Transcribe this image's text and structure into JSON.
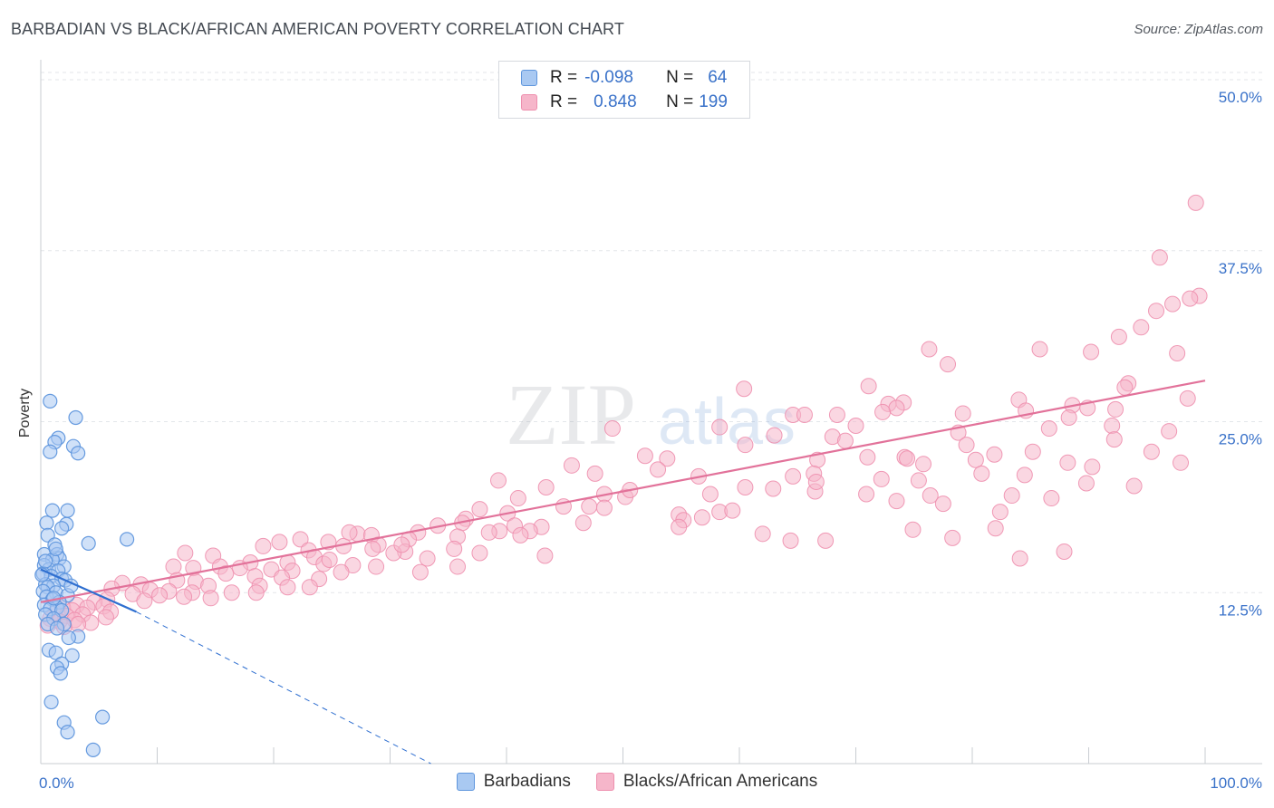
{
  "header": {
    "title": "BARBADIAN VS BLACK/AFRICAN AMERICAN POVERTY CORRELATION CHART",
    "source": "Source: ZipAtlas.com"
  },
  "legend": {
    "rows": [
      {
        "r_label": "R =",
        "r_value": "-0.098",
        "n_label": "N =",
        "n_value": "64"
      },
      {
        "r_label": "R =",
        "r_value": "0.848",
        "n_label": "N =",
        "n_value": "199"
      }
    ]
  },
  "bottom_legend": [
    "Barbadians",
    "Blacks/African Americans"
  ],
  "colors": {
    "blue_fill": "#a9c9f2",
    "blue_stroke": "#5f96dd",
    "blue_line": "#2f6fd0",
    "pink_fill": "#f6b6ca",
    "pink_stroke": "#ee8fae",
    "pink_line": "#e2729a",
    "axis_text": "#3a72c9",
    "grid": "#e3e6ea"
  },
  "watermark": {
    "zip": "ZIP",
    "atlas": "atlas"
  },
  "chart_data": {
    "type": "scatter",
    "title": "BARBADIAN VS BLACK/AFRICAN AMERICAN POVERTY CORRELATION CHART",
    "xlabel": "",
    "ylabel": "Poverty",
    "xlim": [
      0,
      100
    ],
    "ylim": [
      0,
      50
    ],
    "x_tick_labels": [
      "0.0%",
      "100.0%"
    ],
    "y_ticks": [
      12.5,
      25.0,
      37.5,
      50.0
    ],
    "y_tick_labels": [
      "12.5%",
      "25.0%",
      "37.5%",
      "50.0%"
    ],
    "grid": true,
    "series": [
      {
        "name": "Barbadians",
        "color": "blue",
        "R": -0.098,
        "N": 64,
        "trend_solid": [
          [
            0,
            14.2
          ],
          [
            8.2,
            11.1
          ]
        ],
        "trend_dashed": [
          [
            8.2,
            11.1
          ],
          [
            33.5,
            0
          ]
        ],
        "points": [
          [
            0.8,
            26.5
          ],
          [
            3.0,
            25.3
          ],
          [
            1.5,
            23.8
          ],
          [
            1.2,
            23.5
          ],
          [
            2.8,
            23.2
          ],
          [
            0.8,
            22.8
          ],
          [
            3.2,
            22.7
          ],
          [
            1.0,
            18.5
          ],
          [
            2.3,
            18.5
          ],
          [
            0.5,
            17.6
          ],
          [
            2.2,
            17.5
          ],
          [
            1.8,
            17.2
          ],
          [
            0.6,
            16.7
          ],
          [
            1.2,
            16.0
          ],
          [
            4.1,
            16.1
          ],
          [
            7.4,
            16.4
          ],
          [
            0.3,
            15.3
          ],
          [
            1.4,
            15.3
          ],
          [
            1.6,
            15.0
          ],
          [
            1.0,
            14.9
          ],
          [
            0.3,
            14.5
          ],
          [
            2.0,
            14.4
          ],
          [
            0.7,
            14.2
          ],
          [
            1.5,
            14.1
          ],
          [
            0.2,
            13.9
          ],
          [
            0.9,
            13.7
          ],
          [
            1.8,
            13.5
          ],
          [
            2.1,
            13.4
          ],
          [
            0.4,
            13.1
          ],
          [
            1.1,
            13.0
          ],
          [
            0.6,
            12.9
          ],
          [
            0.2,
            12.6
          ],
          [
            1.3,
            12.5
          ],
          [
            2.3,
            12.3
          ],
          [
            0.5,
            12.2
          ],
          [
            1.0,
            12.0
          ],
          [
            1.6,
            11.8
          ],
          [
            0.3,
            11.6
          ],
          [
            1.4,
            11.4
          ],
          [
            0.8,
            11.3
          ],
          [
            1.8,
            11.2
          ],
          [
            0.4,
            10.9
          ],
          [
            1.1,
            10.6
          ],
          [
            0.6,
            10.2
          ],
          [
            2.0,
            10.2
          ],
          [
            1.4,
            9.9
          ],
          [
            3.2,
            9.3
          ],
          [
            2.4,
            9.2
          ],
          [
            0.7,
            8.3
          ],
          [
            1.3,
            8.1
          ],
          [
            2.7,
            7.9
          ],
          [
            1.8,
            7.3
          ],
          [
            1.4,
            7.0
          ],
          [
            1.7,
            6.6
          ],
          [
            0.9,
            4.5
          ],
          [
            5.3,
            3.4
          ],
          [
            2.0,
            3.0
          ],
          [
            2.3,
            2.3
          ],
          [
            4.5,
            1.0
          ],
          [
            1.1,
            12.1
          ],
          [
            0.1,
            13.8
          ],
          [
            1.3,
            15.7
          ],
          [
            2.6,
            13.0
          ],
          [
            0.4,
            14.8
          ]
        ]
      },
      {
        "name": "Blacks/African Americans",
        "color": "pink",
        "R": 0.848,
        "N": 199,
        "trend": [
          [
            0,
            11.8
          ],
          [
            100,
            28.0
          ]
        ],
        "points": [
          [
            99.2,
            41.0
          ],
          [
            96.1,
            37.0
          ],
          [
            99.5,
            34.2
          ],
          [
            98.7,
            34.0
          ],
          [
            97.2,
            33.6
          ],
          [
            95.8,
            33.1
          ],
          [
            94.5,
            31.9
          ],
          [
            92.6,
            31.2
          ],
          [
            90.2,
            30.1
          ],
          [
            97.6,
            30.0
          ],
          [
            76.3,
            30.3
          ],
          [
            85.8,
            30.3
          ],
          [
            77.9,
            29.2
          ],
          [
            93.4,
            27.8
          ],
          [
            71.1,
            27.6
          ],
          [
            60.4,
            27.4
          ],
          [
            98.5,
            26.7
          ],
          [
            84.0,
            26.6
          ],
          [
            74.1,
            26.4
          ],
          [
            72.8,
            26.3
          ],
          [
            88.6,
            26.2
          ],
          [
            73.5,
            26.0
          ],
          [
            92.3,
            25.9
          ],
          [
            84.6,
            25.8
          ],
          [
            72.3,
            25.7
          ],
          [
            79.2,
            25.6
          ],
          [
            68.4,
            25.5
          ],
          [
            64.6,
            25.5
          ],
          [
            65.6,
            25.5
          ],
          [
            88.3,
            25.3
          ],
          [
            92.0,
            24.7
          ],
          [
            70.0,
            24.7
          ],
          [
            58.3,
            24.6
          ],
          [
            49.1,
            24.5
          ],
          [
            86.6,
            24.5
          ],
          [
            78.8,
            24.2
          ],
          [
            96.9,
            24.3
          ],
          [
            68.0,
            23.9
          ],
          [
            92.2,
            23.7
          ],
          [
            69.1,
            23.6
          ],
          [
            79.5,
            23.3
          ],
          [
            85.2,
            22.8
          ],
          [
            95.4,
            22.8
          ],
          [
            81.9,
            22.6
          ],
          [
            74.2,
            22.4
          ],
          [
            71.0,
            22.4
          ],
          [
            74.4,
            22.3
          ],
          [
            66.7,
            22.2
          ],
          [
            80.3,
            22.2
          ],
          [
            53.8,
            22.3
          ],
          [
            88.2,
            22.0
          ],
          [
            90.3,
            21.7
          ],
          [
            97.9,
            22.0
          ],
          [
            66.4,
            21.2
          ],
          [
            80.8,
            21.2
          ],
          [
            84.5,
            21.1
          ],
          [
            64.6,
            21.0
          ],
          [
            56.5,
            21.0
          ],
          [
            72.2,
            20.8
          ],
          [
            75.4,
            20.7
          ],
          [
            89.8,
            20.5
          ],
          [
            93.9,
            20.3
          ],
          [
            60.5,
            20.2
          ],
          [
            62.9,
            20.1
          ],
          [
            66.5,
            19.9
          ],
          [
            70.9,
            19.7
          ],
          [
            76.4,
            19.6
          ],
          [
            83.4,
            19.6
          ],
          [
            86.8,
            19.4
          ],
          [
            50.2,
            19.5
          ],
          [
            48.4,
            19.7
          ],
          [
            57.5,
            19.7
          ],
          [
            47.1,
            18.8
          ],
          [
            48.4,
            18.7
          ],
          [
            37.7,
            18.6
          ],
          [
            58.3,
            18.4
          ],
          [
            54.8,
            18.2
          ],
          [
            40.1,
            18.3
          ],
          [
            36.5,
            17.9
          ],
          [
            55.2,
            17.8
          ],
          [
            43.0,
            17.3
          ],
          [
            40.7,
            17.4
          ],
          [
            36.2,
            17.6
          ],
          [
            46.6,
            17.6
          ],
          [
            34.1,
            17.4
          ],
          [
            42.0,
            17.0
          ],
          [
            39.4,
            17.0
          ],
          [
            38.5,
            16.9
          ],
          [
            32.4,
            16.9
          ],
          [
            41.2,
            16.7
          ],
          [
            27.2,
            16.8
          ],
          [
            28.4,
            16.7
          ],
          [
            22.3,
            16.4
          ],
          [
            20.5,
            16.2
          ],
          [
            31.6,
            16.4
          ],
          [
            35.8,
            16.6
          ],
          [
            24.7,
            16.2
          ],
          [
            29.0,
            16.0
          ],
          [
            23.0,
            15.6
          ],
          [
            26.0,
            15.9
          ],
          [
            19.1,
            15.9
          ],
          [
            35.5,
            15.7
          ],
          [
            28.5,
            15.7
          ],
          [
            31.3,
            15.5
          ],
          [
            37.7,
            15.4
          ],
          [
            30.3,
            15.4
          ],
          [
            43.3,
            15.2
          ],
          [
            23.5,
            15.1
          ],
          [
            33.2,
            15.0
          ],
          [
            14.8,
            15.2
          ],
          [
            18.0,
            14.7
          ],
          [
            21.2,
            14.7
          ],
          [
            24.3,
            14.6
          ],
          [
            15.4,
            14.4
          ],
          [
            26.8,
            14.5
          ],
          [
            28.8,
            14.4
          ],
          [
            35.8,
            14.4
          ],
          [
            11.4,
            14.4
          ],
          [
            13.1,
            14.3
          ],
          [
            17.1,
            14.3
          ],
          [
            19.8,
            14.2
          ],
          [
            21.6,
            14.1
          ],
          [
            25.8,
            14.0
          ],
          [
            32.6,
            14.0
          ],
          [
            15.9,
            13.9
          ],
          [
            18.4,
            13.7
          ],
          [
            20.7,
            13.6
          ],
          [
            23.9,
            13.5
          ],
          [
            11.7,
            13.4
          ],
          [
            13.3,
            13.3
          ],
          [
            7.0,
            13.2
          ],
          [
            8.6,
            13.1
          ],
          [
            14.4,
            13.0
          ],
          [
            18.8,
            13.0
          ],
          [
            21.2,
            12.9
          ],
          [
            23.1,
            12.9
          ],
          [
            6.1,
            12.8
          ],
          [
            9.4,
            12.7
          ],
          [
            11.0,
            12.6
          ],
          [
            13.0,
            12.5
          ],
          [
            16.4,
            12.5
          ],
          [
            18.5,
            12.5
          ],
          [
            7.9,
            12.4
          ],
          [
            10.2,
            12.3
          ],
          [
            12.3,
            12.2
          ],
          [
            14.6,
            12.1
          ],
          [
            5.7,
            12.0
          ],
          [
            8.9,
            11.9
          ],
          [
            4.6,
            11.8
          ],
          [
            3.1,
            11.6
          ],
          [
            5.4,
            11.5
          ],
          [
            1.9,
            11.4
          ],
          [
            4.0,
            11.4
          ],
          [
            2.7,
            11.2
          ],
          [
            6.0,
            11.1
          ],
          [
            1.2,
            11.0
          ],
          [
            3.6,
            10.9
          ],
          [
            2.2,
            10.8
          ],
          [
            5.6,
            10.7
          ],
          [
            0.8,
            10.6
          ],
          [
            2.9,
            10.5
          ],
          [
            1.6,
            10.4
          ],
          [
            4.3,
            10.3
          ],
          [
            3.2,
            10.2
          ],
          [
            0.6,
            10.1
          ],
          [
            2.0,
            10.0
          ],
          [
            12.4,
            15.4
          ],
          [
            64.4,
            16.3
          ],
          [
            59.4,
            18.5
          ],
          [
            54.8,
            17.3
          ],
          [
            56.8,
            18.0
          ],
          [
            62.0,
            16.8
          ],
          [
            67.4,
            16.3
          ],
          [
            74.9,
            17.1
          ],
          [
            78.3,
            16.5
          ],
          [
            82.0,
            17.2
          ],
          [
            84.1,
            15.0
          ],
          [
            87.9,
            15.5
          ],
          [
            73.5,
            19.2
          ],
          [
            66.6,
            20.6
          ],
          [
            89.9,
            26.0
          ],
          [
            93.1,
            27.5
          ],
          [
            82.4,
            18.4
          ],
          [
            77.5,
            19.0
          ],
          [
            75.8,
            21.9
          ],
          [
            60.5,
            23.3
          ],
          [
            63.0,
            24.0
          ],
          [
            51.9,
            22.5
          ],
          [
            45.6,
            21.8
          ],
          [
            43.4,
            20.2
          ],
          [
            41.0,
            19.4
          ],
          [
            53.0,
            21.5
          ],
          [
            31.0,
            16.0
          ],
          [
            26.5,
            16.9
          ],
          [
            44.9,
            18.8
          ],
          [
            39.3,
            20.7
          ],
          [
            47.6,
            21.2
          ],
          [
            50.6,
            20.0
          ],
          [
            24.8,
            14.9
          ]
        ]
      }
    ]
  }
}
